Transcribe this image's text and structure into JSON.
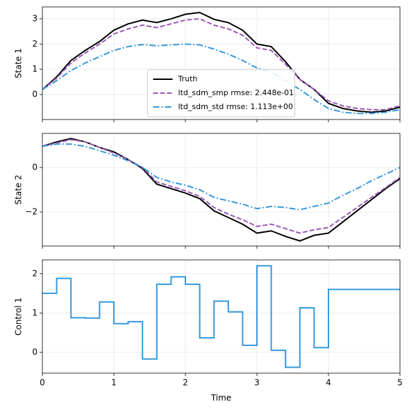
{
  "chart_data": [
    {
      "type": "line",
      "ylabel": "State 1",
      "x": [
        0,
        0.2,
        0.4,
        0.6,
        0.8,
        1.0,
        1.2,
        1.4,
        1.6,
        1.8,
        2.0,
        2.2,
        2.4,
        2.6,
        2.8,
        3.0,
        3.2,
        3.4,
        3.6,
        3.8,
        4.0,
        4.2,
        4.4,
        4.6,
        4.8,
        5.0
      ],
      "series": [
        {
          "name": "Truth",
          "color": "#000000",
          "linestyle": "solid",
          "values": [
            0.2,
            0.7,
            1.35,
            1.75,
            2.1,
            2.55,
            2.8,
            2.95,
            2.85,
            3.0,
            3.18,
            3.25,
            2.98,
            2.85,
            2.55,
            2.0,
            1.9,
            1.3,
            0.6,
            0.2,
            -0.35,
            -0.55,
            -0.65,
            -0.7,
            -0.65,
            -0.5
          ]
        },
        {
          "name": "ltd_sdm_smp rmse: 2.448e-01",
          "color": "#9b59b6",
          "linestyle": "dashed",
          "values": [
            0.2,
            0.65,
            1.25,
            1.65,
            2.0,
            2.4,
            2.6,
            2.75,
            2.65,
            2.8,
            2.95,
            3.0,
            2.75,
            2.6,
            2.35,
            1.85,
            1.75,
            1.2,
            0.6,
            0.2,
            -0.25,
            -0.45,
            -0.55,
            -0.6,
            -0.6,
            -0.45
          ]
        },
        {
          "name": "ltd_sdm_std rmse: 1.113e+00",
          "color": "#3498db",
          "linestyle": "dashdot",
          "values": [
            0.2,
            0.55,
            0.95,
            1.25,
            1.5,
            1.75,
            1.9,
            1.98,
            1.93,
            1.97,
            2.0,
            1.97,
            1.8,
            1.6,
            1.35,
            1.05,
            0.9,
            0.55,
            0.2,
            -0.2,
            -0.55,
            -0.7,
            -0.75,
            -0.75,
            -0.7,
            -0.6
          ]
        }
      ],
      "xlim": [
        0,
        5
      ],
      "xticks": [
        0,
        1,
        2,
        3,
        4,
        5
      ],
      "show_xticklabels": false,
      "ylim": [
        -0.99,
        3.47
      ],
      "yticks": [
        0,
        1,
        2,
        3
      ],
      "grid": true,
      "legend": "lower center"
    },
    {
      "type": "line",
      "ylabel": "State 2",
      "x": [
        0,
        0.2,
        0.4,
        0.6,
        0.8,
        1.0,
        1.2,
        1.4,
        1.6,
        1.8,
        2.0,
        2.2,
        2.4,
        2.6,
        2.8,
        3.0,
        3.2,
        3.4,
        3.6,
        3.8,
        4.0,
        4.2,
        4.4,
        4.6,
        4.8,
        5.0
      ],
      "series": [
        {
          "color": "#000000",
          "linestyle": "solid",
          "values": [
            0.95,
            1.15,
            1.3,
            1.15,
            0.9,
            0.7,
            0.35,
            -0.05,
            -0.75,
            -0.95,
            -1.15,
            -1.4,
            -1.95,
            -2.25,
            -2.55,
            -2.95,
            -2.85,
            -3.1,
            -3.3,
            -3.05,
            -2.95,
            -2.45,
            -1.95,
            -1.45,
            -0.95,
            -0.5
          ]
        },
        {
          "color": "#9b59b6",
          "linestyle": "dashed",
          "values": [
            0.95,
            1.1,
            1.25,
            1.15,
            0.9,
            0.65,
            0.35,
            0.0,
            -0.65,
            -0.85,
            -1.05,
            -1.3,
            -1.8,
            -2.1,
            -2.35,
            -2.65,
            -2.55,
            -2.75,
            -2.95,
            -2.8,
            -2.7,
            -2.25,
            -1.8,
            -1.35,
            -0.9,
            -0.45
          ]
        },
        {
          "color": "#3498db",
          "linestyle": "dashdot",
          "values": [
            0.95,
            1.05,
            1.05,
            0.95,
            0.75,
            0.55,
            0.3,
            0.0,
            -0.45,
            -0.65,
            -0.8,
            -1.0,
            -1.35,
            -1.5,
            -1.65,
            -1.85,
            -1.75,
            -1.8,
            -1.9,
            -1.75,
            -1.6,
            -1.25,
            -0.95,
            -0.6,
            -0.3,
            0.0
          ]
        }
      ],
      "xlim": [
        0,
        5
      ],
      "xticks": [
        0,
        1,
        2,
        3,
        4,
        5
      ],
      "show_xticklabels": false,
      "ylim": [
        -3.53,
        1.53
      ],
      "yticks": [
        {
          "value": -2,
          "label": "−2"
        },
        0
      ],
      "grid": true
    },
    {
      "type": "line",
      "ylabel": "Control 1",
      "xlabel": "Time",
      "drawstyle": "steps-post",
      "x": [
        0,
        0.2,
        0.4,
        0.6,
        0.8,
        1.0,
        1.2,
        1.4,
        1.6,
        1.8,
        2.0,
        2.2,
        2.4,
        2.6,
        2.8,
        3.0,
        3.2,
        3.4,
        3.6,
        3.8,
        4.0,
        4.2,
        4.4,
        4.6,
        4.8,
        5.0
      ],
      "series": [
        {
          "color": "#3498db",
          "linestyle": "solid",
          "values": [
            1.5,
            1.88,
            0.88,
            0.87,
            1.28,
            0.73,
            0.78,
            -0.17,
            1.73,
            1.92,
            1.73,
            0.37,
            1.3,
            1.03,
            0.18,
            2.2,
            0.05,
            -0.38,
            1.13,
            0.12,
            1.6,
            1.6,
            1.6,
            1.6,
            1.6,
            1.6
          ]
        }
      ],
      "xlim": [
        0,
        5
      ],
      "xticks": [
        0,
        1,
        2,
        3,
        4,
        5
      ],
      "show_xticklabels": true,
      "ylim": [
        -0.53,
        2.35
      ],
      "yticks": [
        0,
        1,
        2
      ],
      "grid": true
    }
  ]
}
